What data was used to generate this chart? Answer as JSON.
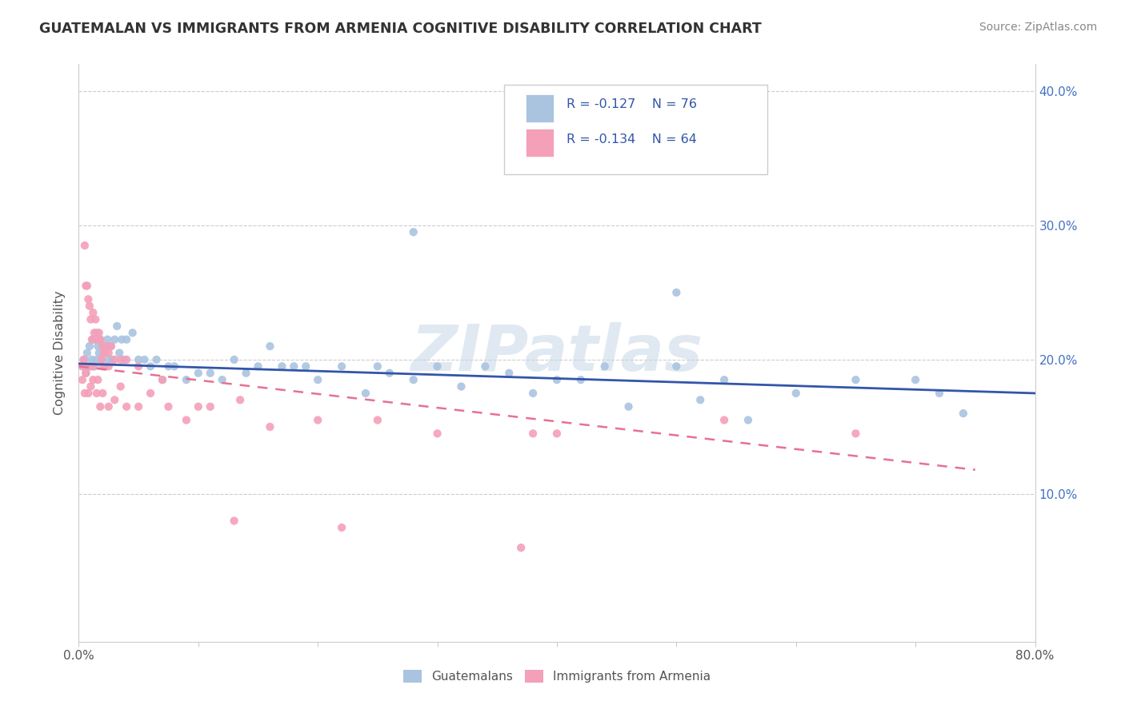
{
  "title": "GUATEMALAN VS IMMIGRANTS FROM ARMENIA COGNITIVE DISABILITY CORRELATION CHART",
  "source_text": "Source: ZipAtlas.com",
  "ylabel": "Cognitive Disability",
  "series1_name": "Guatemalans",
  "series2_name": "Immigrants from Armenia",
  "series1_color": "#aac4e0",
  "series2_color": "#f4a0b8",
  "series1_line_color": "#3355aa",
  "series2_line_color": "#e87090",
  "series1_R": "-0.127",
  "series1_N": "76",
  "series2_R": "-0.134",
  "series2_N": "64",
  "xlim": [
    0.0,
    0.8
  ],
  "ylim": [
    -0.01,
    0.42
  ],
  "watermark": "ZIPatlas",
  "trend1_x0": 0.0,
  "trend1_y0": 0.197,
  "trend1_x1": 0.8,
  "trend1_y1": 0.175,
  "trend2_x0": 0.0,
  "trend2_y0": 0.195,
  "trend2_x1": 0.75,
  "trend2_y1": 0.118,
  "series1_x": [
    0.004,
    0.005,
    0.006,
    0.007,
    0.008,
    0.009,
    0.01,
    0.011,
    0.012,
    0.013,
    0.014,
    0.015,
    0.015,
    0.016,
    0.017,
    0.018,
    0.019,
    0.02,
    0.021,
    0.022,
    0.023,
    0.024,
    0.025,
    0.027,
    0.028,
    0.03,
    0.032,
    0.034,
    0.036,
    0.038,
    0.04,
    0.045,
    0.05,
    0.055,
    0.06,
    0.065,
    0.07,
    0.075,
    0.08,
    0.09,
    0.1,
    0.11,
    0.12,
    0.13,
    0.14,
    0.15,
    0.16,
    0.17,
    0.18,
    0.19,
    0.2,
    0.22,
    0.24,
    0.25,
    0.26,
    0.28,
    0.3,
    0.32,
    0.34,
    0.36,
    0.38,
    0.4,
    0.42,
    0.44,
    0.46,
    0.5,
    0.52,
    0.54,
    0.56,
    0.6,
    0.65,
    0.7,
    0.72,
    0.74,
    0.5,
    0.28
  ],
  "series1_y": [
    0.195,
    0.2,
    0.19,
    0.205,
    0.195,
    0.21,
    0.195,
    0.2,
    0.215,
    0.195,
    0.215,
    0.2,
    0.22,
    0.21,
    0.205,
    0.215,
    0.2,
    0.21,
    0.205,
    0.195,
    0.21,
    0.215,
    0.2,
    0.21,
    0.2,
    0.215,
    0.225,
    0.205,
    0.215,
    0.2,
    0.215,
    0.22,
    0.2,
    0.2,
    0.195,
    0.2,
    0.185,
    0.195,
    0.195,
    0.185,
    0.19,
    0.19,
    0.185,
    0.2,
    0.19,
    0.195,
    0.21,
    0.195,
    0.195,
    0.195,
    0.185,
    0.195,
    0.175,
    0.195,
    0.19,
    0.185,
    0.195,
    0.18,
    0.195,
    0.19,
    0.175,
    0.185,
    0.185,
    0.195,
    0.165,
    0.195,
    0.17,
    0.185,
    0.155,
    0.175,
    0.185,
    0.185,
    0.175,
    0.16,
    0.25,
    0.295
  ],
  "series2_x": [
    0.003,
    0.004,
    0.005,
    0.006,
    0.007,
    0.008,
    0.009,
    0.01,
    0.011,
    0.012,
    0.013,
    0.014,
    0.015,
    0.016,
    0.017,
    0.018,
    0.019,
    0.02,
    0.021,
    0.022,
    0.023,
    0.025,
    0.027,
    0.03,
    0.035,
    0.04,
    0.005,
    0.008,
    0.01,
    0.012,
    0.015,
    0.018,
    0.02,
    0.025,
    0.03,
    0.04,
    0.05,
    0.06,
    0.075,
    0.09,
    0.11,
    0.135,
    0.16,
    0.2,
    0.25,
    0.3,
    0.38,
    0.4,
    0.54,
    0.65,
    0.13,
    0.22,
    0.37,
    0.003,
    0.006,
    0.009,
    0.012,
    0.016,
    0.02,
    0.025,
    0.035,
    0.05,
    0.07,
    0.1
  ],
  "series2_y": [
    0.195,
    0.2,
    0.285,
    0.255,
    0.255,
    0.245,
    0.24,
    0.23,
    0.215,
    0.235,
    0.22,
    0.23,
    0.215,
    0.215,
    0.22,
    0.215,
    0.2,
    0.21,
    0.205,
    0.205,
    0.21,
    0.205,
    0.21,
    0.2,
    0.2,
    0.2,
    0.175,
    0.175,
    0.18,
    0.185,
    0.175,
    0.165,
    0.175,
    0.165,
    0.17,
    0.165,
    0.165,
    0.175,
    0.165,
    0.155,
    0.165,
    0.17,
    0.15,
    0.155,
    0.155,
    0.145,
    0.145,
    0.145,
    0.155,
    0.145,
    0.08,
    0.075,
    0.06,
    0.185,
    0.19,
    0.195,
    0.195,
    0.185,
    0.195,
    0.195,
    0.18,
    0.195,
    0.185,
    0.165
  ]
}
